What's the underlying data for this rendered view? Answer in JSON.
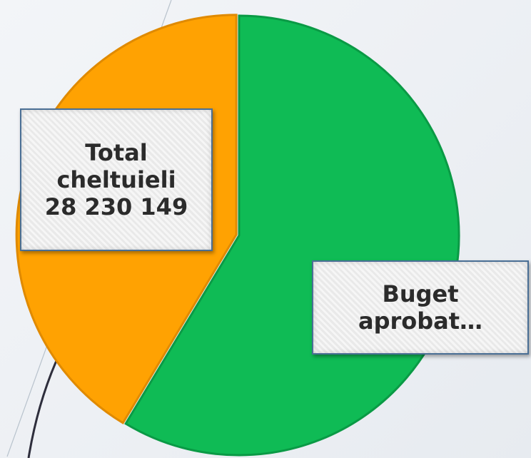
{
  "chart_data": {
    "type": "pie",
    "categories": [
      "Buget aprobat…",
      "Total cheltuieli"
    ],
    "values": [
      40000000,
      28230149
    ],
    "value_labels": [
      null,
      "28 230 149"
    ],
    "colors": [
      "#0fbb55",
      "#ffa202"
    ]
  }
}
